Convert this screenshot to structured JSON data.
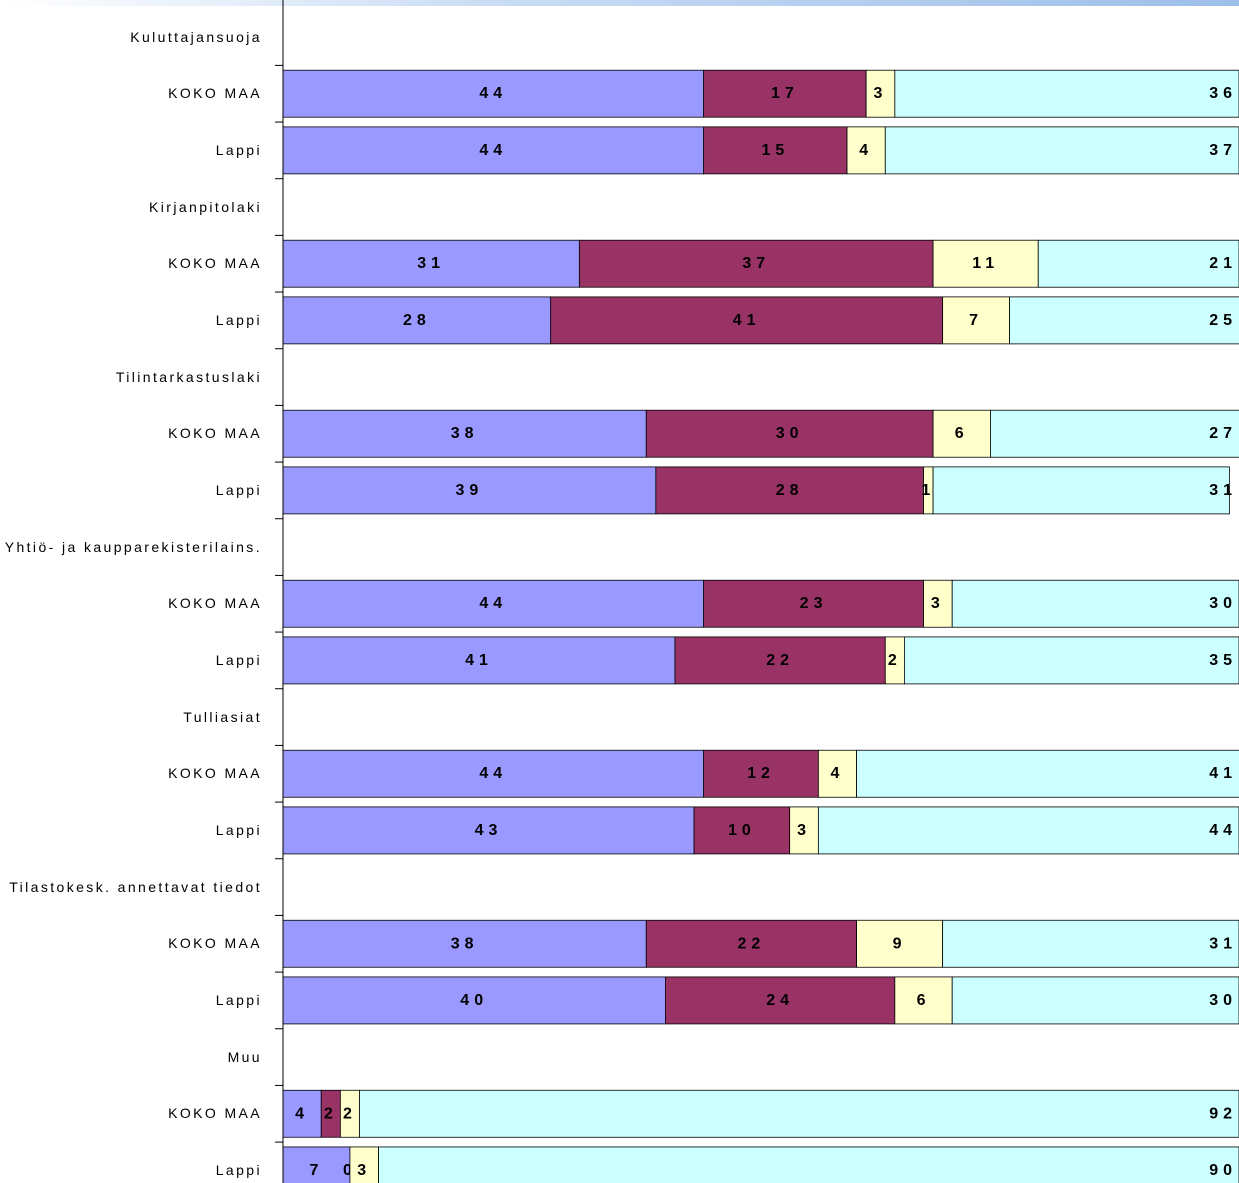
{
  "chart_data": {
    "type": "stacked-bar-horizontal",
    "categories": [
      "Kuluttajansuoja",
      "KOKO MAA",
      "Lappi",
      "Kirjanpitolaki",
      "KOKO MAA",
      "Lappi",
      "Tilintarkastuslaki",
      "KOKO MAA",
      "Lappi",
      "Yhtiö- ja kaupparekisterilains.",
      "KOKO MAA",
      "Lappi",
      "Tulliasiat",
      "KOKO MAA",
      "Lappi",
      "Tilastokesk. annettavat tiedot",
      "KOKO MAA",
      "Lappi",
      "Muu",
      "KOKO MAA",
      "Lappi"
    ],
    "series": [
      {
        "color": "#9999ff",
        "values": [
          null,
          44,
          44,
          null,
          31,
          28,
          null,
          38,
          39,
          null,
          44,
          41,
          null,
          44,
          43,
          null,
          38,
          40,
          null,
          4,
          7
        ]
      },
      {
        "color": "#993366",
        "values": [
          null,
          17,
          15,
          null,
          37,
          41,
          null,
          30,
          28,
          null,
          23,
          22,
          null,
          12,
          10,
          null,
          22,
          24,
          null,
          2,
          0
        ]
      },
      {
        "color": "#ffffcc",
        "values": [
          null,
          3,
          4,
          null,
          11,
          7,
          null,
          6,
          1,
          null,
          3,
          2,
          null,
          4,
          3,
          null,
          9,
          6,
          null,
          2,
          3
        ]
      },
      {
        "color": "#ccffff",
        "values": [
          null,
          36,
          37,
          null,
          21,
          25,
          null,
          27,
          31,
          null,
          30,
          35,
          null,
          41,
          44,
          null,
          31,
          30,
          null,
          92,
          90
        ]
      }
    ],
    "xlim": [
      0,
      100
    ]
  }
}
